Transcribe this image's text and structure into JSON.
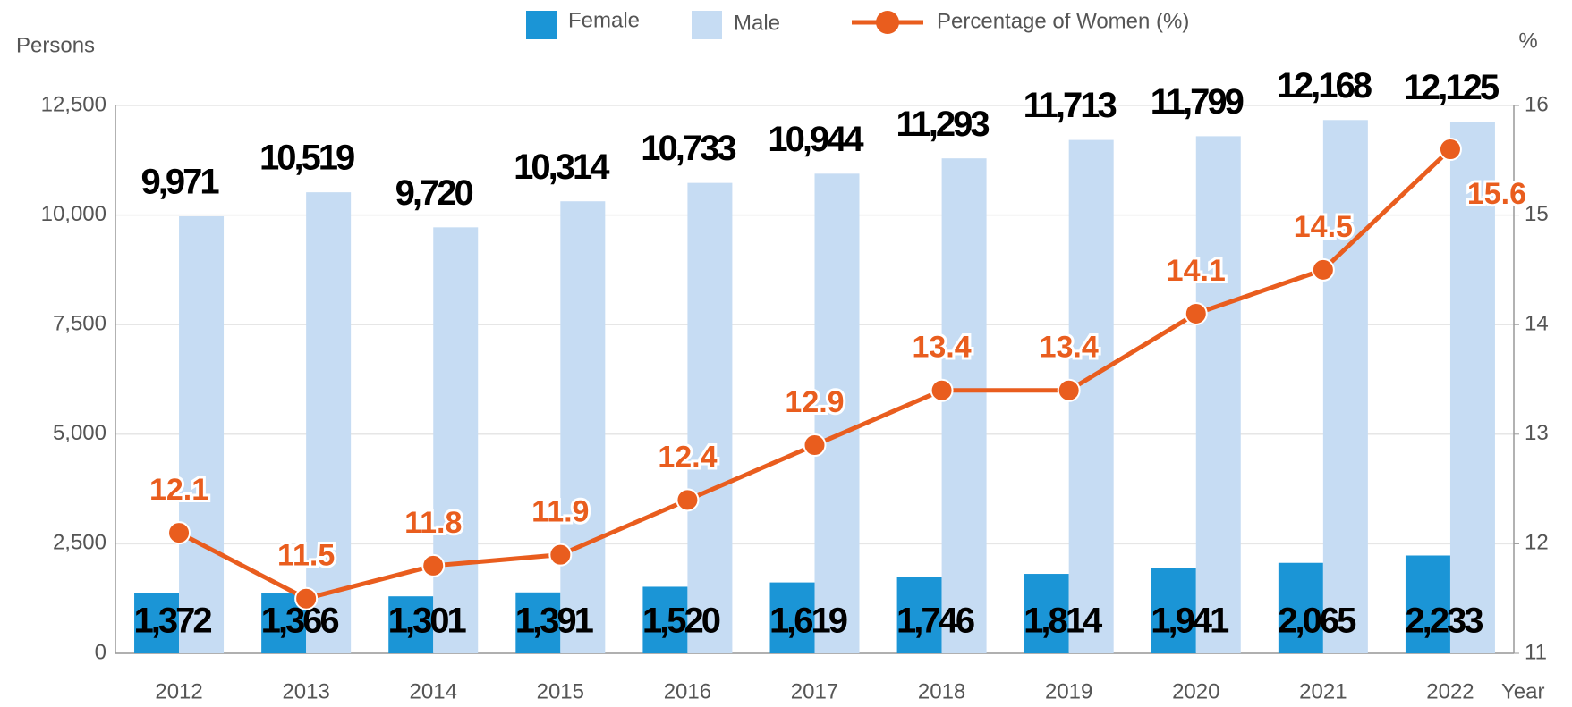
{
  "chart_data": {
    "type": "bar",
    "categories": [
      "2012",
      "2013",
      "2014",
      "2015",
      "2016",
      "2017",
      "2018",
      "2019",
      "2020",
      "2021",
      "2022"
    ],
    "series": [
      {
        "name": "Female",
        "color": "#1b95d6",
        "values": [
          1372,
          1366,
          1301,
          1391,
          1520,
          1619,
          1746,
          1814,
          1941,
          2065,
          2233
        ],
        "value_labels": [
          "1,372",
          "1,366",
          "1,301",
          "1,391",
          "1,520",
          "1,619",
          "1,746",
          "1,814",
          "1,941",
          "2,065",
          "2,233"
        ]
      },
      {
        "name": "Male",
        "color": "#c6dcf3",
        "values": [
          9971,
          10519,
          9720,
          10314,
          10733,
          10944,
          11293,
          11713,
          11799,
          12168,
          12125
        ],
        "value_labels": [
          "9,971",
          "10,519",
          "9,720",
          "10,314",
          "10,733",
          "10,944",
          "11,293",
          "11,713",
          "11,799",
          "12,168",
          "12,125"
        ]
      },
      {
        "name": "Percentage of Women (%)",
        "type": "line",
        "axis": "y2",
        "color": "#e95d1e",
        "values": [
          12.1,
          11.5,
          11.8,
          11.9,
          12.4,
          12.9,
          13.4,
          13.4,
          14.1,
          14.5,
          15.6
        ]
      }
    ],
    "y_label": "Persons",
    "y2_label": "%",
    "x_label": "Year",
    "ylim": [
      0,
      12500
    ],
    "yticks": [
      0,
      {
        "value": 2500,
        "label": "2,500"
      },
      {
        "value": 5000,
        "label": "5,000"
      },
      {
        "value": 7500,
        "label": "7,500"
      },
      {
        "value": 10000,
        "label": "10,000"
      },
      {
        "value": 12500,
        "label": "12,500"
      }
    ],
    "y2lim": [
      11,
      16
    ],
    "y2ticks": [
      11,
      12,
      13,
      14,
      15,
      16
    ],
    "grid": true
  }
}
